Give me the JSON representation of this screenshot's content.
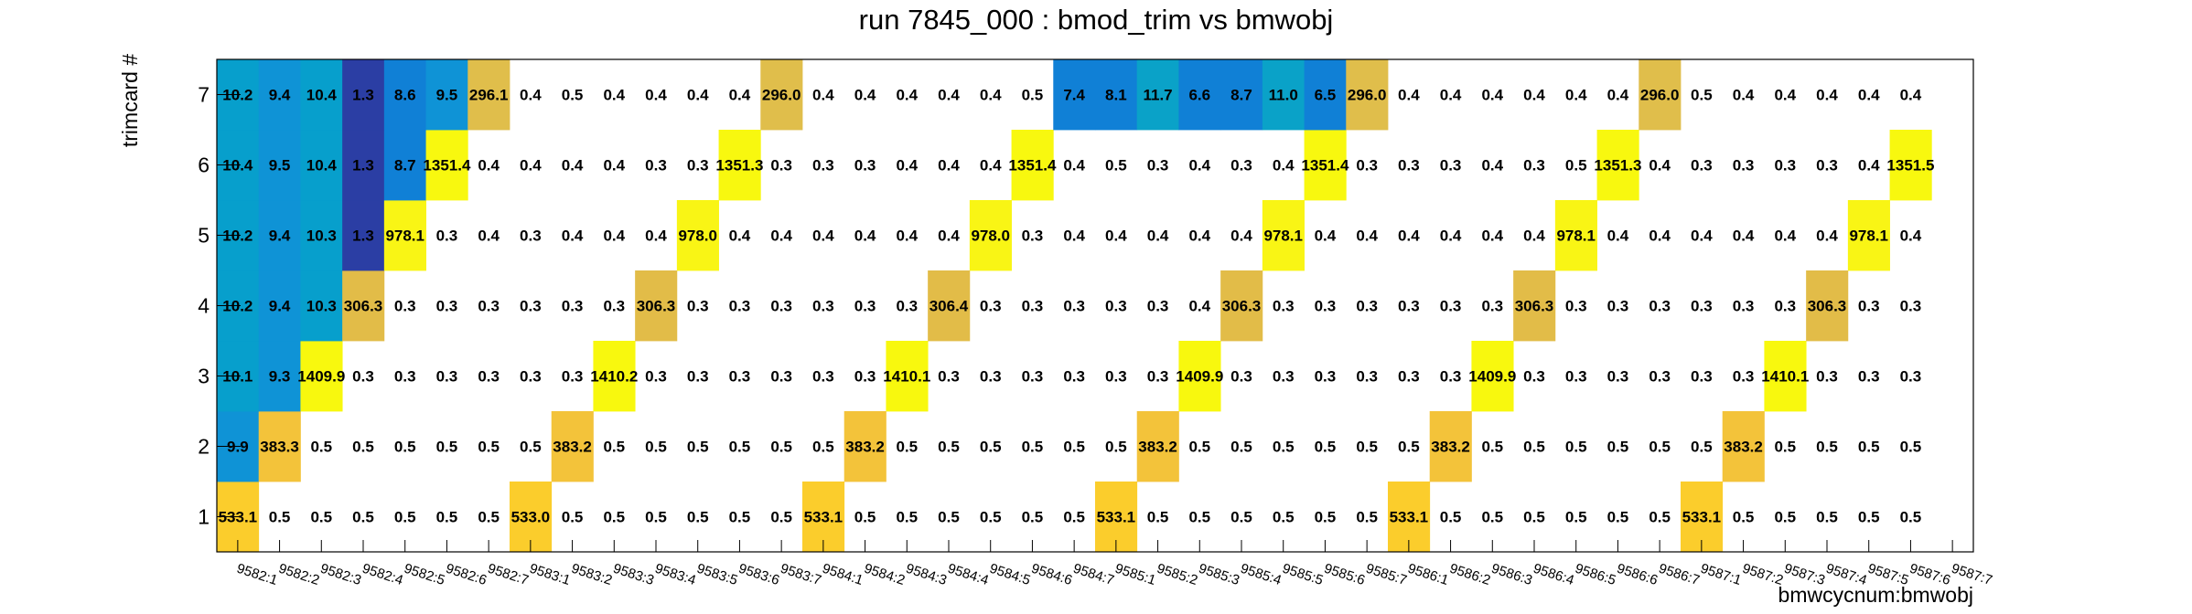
{
  "chart_data": {
    "type": "heatmap",
    "title": "run 7845_000 : bmod_trim vs bmwobj",
    "xlabel": "bmwcycnum:bmwobj",
    "ylabel": "trimcard #",
    "x_categories": [
      "9582:1",
      "9582:2",
      "9582:3",
      "9582:4",
      "9582:5",
      "9582:6",
      "9582:7",
      "9583:1",
      "9583:2",
      "9583:3",
      "9583:4",
      "9583:5",
      "9583:6",
      "9583:7",
      "9584:1",
      "9584:2",
      "9584:3",
      "9584:4",
      "9584:5",
      "9584:6",
      "9584:7",
      "9585:1",
      "9585:2",
      "9585:3",
      "9585:4",
      "9585:5",
      "9585:6",
      "9585:7",
      "9586:1",
      "9586:2",
      "9586:3",
      "9586:4",
      "9586:5",
      "9586:6",
      "9586:7",
      "9587:1",
      "9587:2",
      "9587:3",
      "9587:4",
      "9587:5",
      "9587:6",
      "9587:7"
    ],
    "y_categories": [
      "1",
      "2",
      "3",
      "4",
      "5",
      "6",
      "7"
    ],
    "rows": {
      "7": [
        "10.2",
        "9.4",
        "10.4",
        "1.3",
        "8.6",
        "9.5",
        "296.1",
        "0.4",
        "0.5",
        "0.4",
        "0.4",
        "0.4",
        "0.4",
        "296.0",
        "0.4",
        "0.4",
        "0.4",
        "0.4",
        "0.4",
        "0.5",
        "7.4",
        "8.1",
        "11.7",
        "6.6",
        "8.7",
        "11.0",
        "6.5",
        "296.0",
        "0.4",
        "0.4",
        "0.4",
        "0.4",
        "0.4",
        "0.4",
        "296.0",
        "0.5",
        "0.4",
        "0.4",
        "0.4",
        "0.4",
        "0.4",
        ""
      ],
      "6": [
        "10.4",
        "9.5",
        "10.4",
        "1.3",
        "8.7",
        "1351.4",
        "0.4",
        "0.4",
        "0.4",
        "0.4",
        "0.3",
        "0.3",
        "1351.3",
        "0.3",
        "0.3",
        "0.3",
        "0.4",
        "0.4",
        "0.4",
        "1351.4",
        "0.4",
        "0.5",
        "0.3",
        "0.4",
        "0.3",
        "0.4",
        "1351.4",
        "0.3",
        "0.3",
        "0.3",
        "0.4",
        "0.3",
        "0.5",
        "1351.3",
        "0.4",
        "0.3",
        "0.3",
        "0.3",
        "0.3",
        "0.4",
        "1351.5",
        ""
      ],
      "5": [
        "10.2",
        "9.4",
        "10.3",
        "1.3",
        "978.1",
        "0.3",
        "0.4",
        "0.3",
        "0.4",
        "0.4",
        "0.4",
        "978.0",
        "0.4",
        "0.4",
        "0.4",
        "0.4",
        "0.4",
        "0.4",
        "978.0",
        "0.3",
        "0.4",
        "0.4",
        "0.4",
        "0.4",
        "0.4",
        "978.1",
        "0.4",
        "0.4",
        "0.4",
        "0.4",
        "0.4",
        "0.4",
        "978.1",
        "0.4",
        "0.4",
        "0.4",
        "0.4",
        "0.4",
        "0.4",
        "978.1",
        "0.4",
        ""
      ],
      "4": [
        "10.2",
        "9.4",
        "10.3",
        "306.3",
        "0.3",
        "0.3",
        "0.3",
        "0.3",
        "0.3",
        "0.3",
        "306.3",
        "0.3",
        "0.3",
        "0.3",
        "0.3",
        "0.3",
        "0.3",
        "306.4",
        "0.3",
        "0.3",
        "0.3",
        "0.3",
        "0.3",
        "0.4",
        "306.3",
        "0.3",
        "0.3",
        "0.3",
        "0.3",
        "0.3",
        "0.3",
        "306.3",
        "0.3",
        "0.3",
        "0.3",
        "0.3",
        "0.3",
        "0.3",
        "306.3",
        "0.3",
        "0.3",
        ""
      ],
      "3": [
        "10.1",
        "9.3",
        "1409.9",
        "0.3",
        "0.3",
        "0.3",
        "0.3",
        "0.3",
        "0.3",
        "1410.2",
        "0.3",
        "0.3",
        "0.3",
        "0.3",
        "0.3",
        "0.3",
        "1410.1",
        "0.3",
        "0.3",
        "0.3",
        "0.3",
        "0.3",
        "0.3",
        "1409.9",
        "0.3",
        "0.3",
        "0.3",
        "0.3",
        "0.3",
        "0.3",
        "1409.9",
        "0.3",
        "0.3",
        "0.3",
        "0.3",
        "0.3",
        "0.3",
        "1410.1",
        "0.3",
        "0.3",
        "0.3",
        ""
      ],
      "2": [
        "9.9",
        "383.3",
        "0.5",
        "0.5",
        "0.5",
        "0.5",
        "0.5",
        "0.5",
        "383.2",
        "0.5",
        "0.5",
        "0.5",
        "0.5",
        "0.5",
        "0.5",
        "383.2",
        "0.5",
        "0.5",
        "0.5",
        "0.5",
        "0.5",
        "0.5",
        "383.2",
        "0.5",
        "0.5",
        "0.5",
        "0.5",
        "0.5",
        "0.5",
        "383.2",
        "0.5",
        "0.5",
        "0.5",
        "0.5",
        "0.5",
        "0.5",
        "383.2",
        "0.5",
        "0.5",
        "0.5",
        "0.5",
        ""
      ],
      "1": [
        "533.1",
        "0.5",
        "0.5",
        "0.5",
        "0.5",
        "0.5",
        "0.5",
        "533.0",
        "0.5",
        "0.5",
        "0.5",
        "0.5",
        "0.5",
        "0.5",
        "533.1",
        "0.5",
        "0.5",
        "0.5",
        "0.5",
        "0.5",
        "0.5",
        "533.1",
        "0.5",
        "0.5",
        "0.5",
        "0.5",
        "0.5",
        "0.5",
        "533.1",
        "0.5",
        "0.5",
        "0.5",
        "0.5",
        "0.5",
        "0.5",
        "533.1",
        "0.5",
        "0.5",
        "0.5",
        "0.5",
        "0.5",
        ""
      ]
    },
    "grid": false,
    "colormap": "kBird (ROOT palette 57)",
    "z_min": 0,
    "z_max": 1410.2,
    "colors": {
      "color_1_3": "#2b3ea4",
      "color_6_to_9": "#1080d6",
      "color_9_to_10": "#0f93d6",
      "color_10_to_11": "#079fcc",
      "color_11_to_12": "#0aa2c8",
      "color_296": "#e0be4b",
      "color_306": "#e2bc48",
      "color_383": "#f3c33a",
      "color_533": "#fbcd2c",
      "color_978": "#f9f515",
      "color_1351": "#f8f80f",
      "color_1410": "#f8f80e"
    }
  }
}
